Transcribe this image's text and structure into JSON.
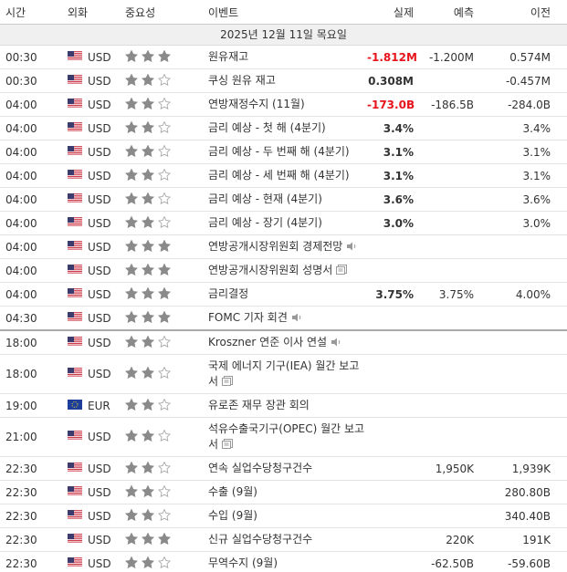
{
  "columns": [
    "시간",
    "외화",
    "중요성",
    "이벤트",
    "실제",
    "예측",
    "이전"
  ],
  "date": "2025년 12월 11일 목요일",
  "rows": [
    {
      "time": "00:30",
      "currency": "USD",
      "importance": 3,
      "event": "원유재고",
      "actual": "-1.812M",
      "actual_color": "#e8141b",
      "forecast": "-1.200M",
      "previous": "0.574M"
    },
    {
      "time": "00:30",
      "currency": "USD",
      "importance": 2,
      "event": "쿠싱 원유 재고",
      "actual": "0.308M",
      "previous": "-0.457M"
    },
    {
      "time": "04:00",
      "currency": "USD",
      "importance": 2,
      "event": "연방재정수지 (11월)",
      "actual": "-173.0B",
      "actual_color": "#e8141b",
      "forecast": "-186.5B",
      "previous": "-284.0B"
    },
    {
      "time": "04:00",
      "currency": "USD",
      "importance": 2,
      "event": "금리 예상 - 첫 해 (4분기)",
      "actual": "3.4%",
      "previous": "3.4%"
    },
    {
      "time": "04:00",
      "currency": "USD",
      "importance": 2,
      "event": "금리 예상 - 두 번째 해 (4분기)",
      "actual": "3.1%",
      "previous": "3.1%"
    },
    {
      "time": "04:00",
      "currency": "USD",
      "importance": 2,
      "event": "금리 예상 - 세 번째 해 (4분기)",
      "actual": "3.1%",
      "previous": "3.1%"
    },
    {
      "time": "04:00",
      "currency": "USD",
      "importance": 2,
      "event": "금리 예상 - 현재 (4분기)",
      "actual": "3.6%",
      "previous": "3.6%"
    },
    {
      "time": "04:00",
      "currency": "USD",
      "importance": 2,
      "event": "금리 예상 - 장기 (4분기)",
      "actual": "3.0%",
      "previous": "3.0%"
    },
    {
      "time": "04:00",
      "currency": "USD",
      "importance": 3,
      "event": "연방공개시장위원회 경제전망",
      "icon": "speaker"
    },
    {
      "time": "04:00",
      "currency": "USD",
      "importance": 3,
      "event": "연방공개시장위원회 성명서",
      "icon": "document"
    },
    {
      "time": "04:00",
      "currency": "USD",
      "importance": 3,
      "event": "금리결정",
      "actual": "3.75%",
      "forecast": "3.75%",
      "previous": "4.00%"
    },
    {
      "time": "04:30",
      "currency": "USD",
      "importance": 3,
      "event": "FOMC 기자 회견",
      "icon": "speaker",
      "divider": true
    },
    {
      "time": "18:00",
      "currency": "USD",
      "importance": 2,
      "event": "Kroszner 연준 이사 연설",
      "icon": "speaker"
    },
    {
      "time": "18:00",
      "currency": "USD",
      "importance": 2,
      "event": "국제 에너지 기구(IEA) 월간 보고서",
      "icon": "document"
    },
    {
      "time": "19:00",
      "currency": "EUR",
      "importance": 2,
      "event": "유로존 재무 장관 회의"
    },
    {
      "time": "21:00",
      "currency": "USD",
      "importance": 2,
      "event": "석유수출국기구(OPEC) 월간 보고서",
      "icon": "document"
    },
    {
      "time": "22:30",
      "currency": "USD",
      "importance": 2,
      "event": "연속 실업수당청구건수",
      "forecast": "1,950K",
      "previous": "1,939K"
    },
    {
      "time": "22:30",
      "currency": "USD",
      "importance": 2,
      "event": "수출 (9월)",
      "previous": "280.80B"
    },
    {
      "time": "22:30",
      "currency": "USD",
      "importance": 2,
      "event": "수입 (9월)",
      "previous": "340.40B"
    },
    {
      "time": "22:30",
      "currency": "USD",
      "importance": 3,
      "event": "신규 실업수당청구건수",
      "forecast": "220K",
      "previous": "191K"
    },
    {
      "time": "22:30",
      "currency": "USD",
      "importance": 2,
      "event": "무역수지 (9월)",
      "forecast": "-62.50B",
      "previous": "-59.60B"
    }
  ]
}
